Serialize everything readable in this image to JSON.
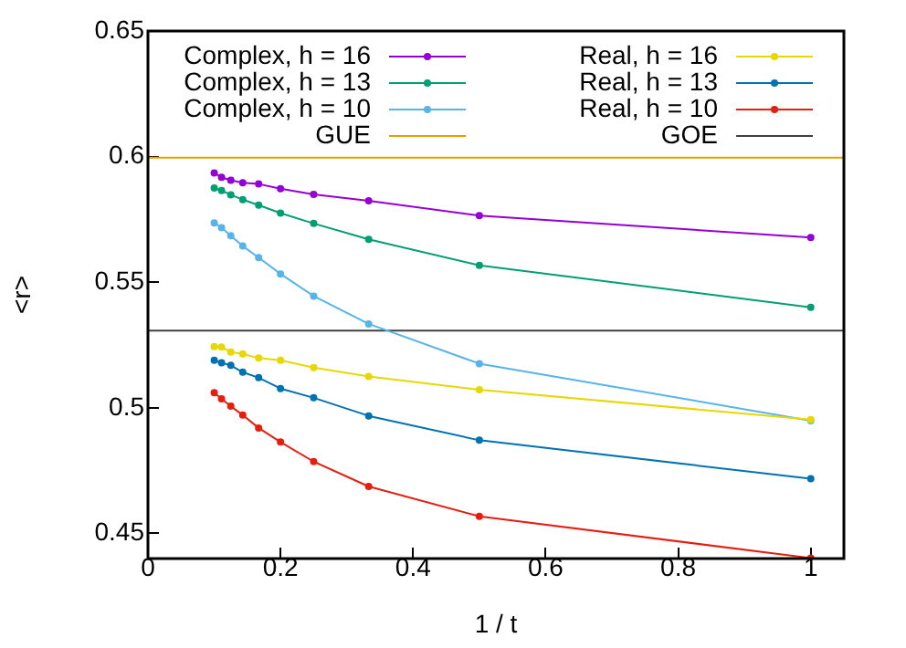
{
  "chart_data": {
    "type": "line",
    "xlabel": "1 / t",
    "ylabel": "<r>",
    "x": [
      0.1,
      0.111,
      0.125,
      0.143,
      0.167,
      0.2,
      0.25,
      0.333,
      0.5,
      1
    ],
    "series": [
      {
        "name": "Complex, h = 16",
        "color": "#9400d3",
        "values": [
          0.5935,
          0.5918,
          0.5906,
          0.5896,
          0.5891,
          0.5872,
          0.585,
          0.5824,
          0.5765,
          0.5678
        ]
      },
      {
        "name": "Complex, h = 13",
        "color": "#009e73",
        "values": [
          0.5875,
          0.5865,
          0.5848,
          0.5829,
          0.5807,
          0.5775,
          0.5734,
          0.5671,
          0.5567,
          0.54
        ]
      },
      {
        "name": "Complex, h = 10",
        "color": "#56b4e9",
        "values": [
          0.5736,
          0.5717,
          0.5685,
          0.5644,
          0.5598,
          0.5533,
          0.5445,
          0.5334,
          0.5176,
          0.4949
        ]
      },
      {
        "name": "Real, h = 16",
        "color": "#e6d800",
        "values": [
          0.5244,
          0.5242,
          0.5222,
          0.5215,
          0.5198,
          0.5189,
          0.516,
          0.5125,
          0.5072,
          0.4953
        ]
      },
      {
        "name": "Real, h = 13",
        "color": "#0072b2",
        "values": [
          0.5189,
          0.5179,
          0.5169,
          0.5142,
          0.512,
          0.5077,
          0.504,
          0.4968,
          0.4871,
          0.4718
        ]
      },
      {
        "name": "Real, h = 10",
        "color": "#e51e10",
        "values": [
          0.506,
          0.5036,
          0.5007,
          0.4971,
          0.492,
          0.4864,
          0.4786,
          0.4687,
          0.4568,
          0.4402
        ]
      }
    ],
    "ref_lines": [
      {
        "axis": "y",
        "value": 0.5996,
        "label": "GUE",
        "color": "#e69f00"
      },
      {
        "axis": "y",
        "value": 0.5307,
        "label": "GOE",
        "color": "#404040"
      }
    ],
    "xlim": [
      0,
      1.05
    ],
    "xticks": [
      0,
      0.2,
      0.4,
      0.6,
      0.8,
      1
    ],
    "ylim": [
      0.44,
      0.65
    ],
    "yticks": [
      0.45,
      0.5,
      0.55,
      0.6,
      0.65
    ],
    "grid": false,
    "legend": "top",
    "marker": "circle"
  }
}
